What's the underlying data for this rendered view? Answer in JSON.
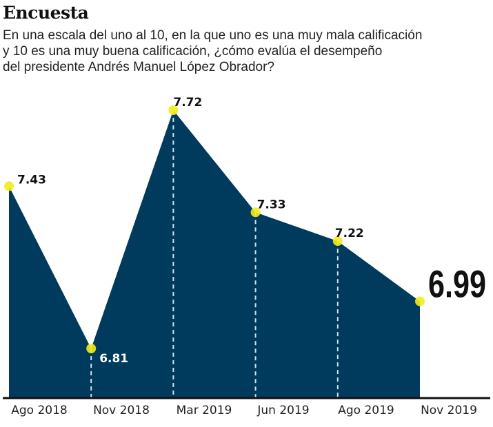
{
  "header": {
    "title": "Encuesta",
    "subtitle_lines": [
      "En una escala del uno al 10, en la que uno es una muy mala calificación",
      "y 10 es una muy buena calificación, ¿cómo evalúa el desempeño",
      "del presidente Andrés Manuel López Obrador?"
    ]
  },
  "colors": {
    "area": "#003a5c",
    "marker": "#f2ec1b",
    "axis": "#111111",
    "dash": "#cfe3ee"
  },
  "chart_data": {
    "type": "area",
    "title": "Encuesta",
    "xlabel": "",
    "ylabel": "",
    "categories": [
      "Ago 2018",
      "Nov 2018",
      "Mar 2019",
      "Jun 2019",
      "Ago 2019",
      "Nov 2019"
    ],
    "values": [
      7.43,
      6.81,
      7.72,
      7.33,
      7.22,
      6.99
    ],
    "value_labels": [
      "7.43",
      "6.81",
      "7.72",
      "7.33",
      "7.22",
      "6.99"
    ],
    "grid": false,
    "legend": "none"
  }
}
